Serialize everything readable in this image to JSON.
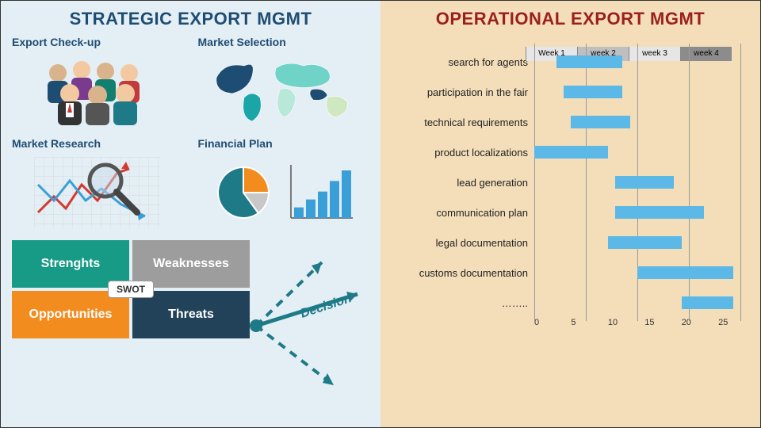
{
  "layout": {
    "left_bg": "#e4eef5",
    "right_bg": "#f3deb9",
    "left_title_color": "#1e4d73",
    "right_title_color": "#9c1f1f",
    "border_color": "#333333"
  },
  "left": {
    "title": "STRATEGIC EXPORT MGMT",
    "cards": {
      "checkup": {
        "title": "Export Check-up",
        "title_color": "#1e4d73"
      },
      "market_selection": {
        "title": "Market Selection",
        "title_color": "#1e4d73",
        "map_colors": [
          "#1e4d73",
          "#1aa6a6",
          "#6fd3c7",
          "#b7e8d8",
          "#cfe8c2"
        ]
      },
      "market_research": {
        "title": "Market Research",
        "title_color": "#1e4d73",
        "line1_color": "#d33a2f",
        "line2_color": "#3a9fd6"
      },
      "financial_plan": {
        "title": "Financial Plan",
        "title_color": "#1e4d73",
        "pie": {
          "slices": [
            {
              "color": "#f28c1f",
              "pct": 25
            },
            {
              "color": "#c8c8c8",
              "pct": 15
            },
            {
              "color": "#1d7a86",
              "pct": 60
            }
          ]
        },
        "bars": {
          "values": [
            20,
            35,
            50,
            70,
            90
          ],
          "color": "#3a9fd6"
        }
      }
    },
    "swot": {
      "label": "SWOT",
      "cells": [
        {
          "key": "strengths",
          "text": "Strenghts",
          "bg": "#179b86"
        },
        {
          "key": "weaknesses",
          "text": "Weaknesses",
          "bg": "#9d9d9d"
        },
        {
          "key": "opportunities",
          "text": "Opportunities",
          "bg": "#f28c1f"
        },
        {
          "key": "threats",
          "text": "Threats",
          "bg": "#22425a"
        }
      ]
    },
    "decision": {
      "label": "Decision",
      "color": "#1d7a86"
    }
  },
  "right": {
    "title": "OPERATIONAL EXPORT MGMT",
    "gantt": {
      "bar_color": "#5cb8e6",
      "grid_color": "#999999",
      "xmax": 28,
      "weeks": [
        {
          "label": "Week 1",
          "bg": "#e6e6e6"
        },
        {
          "label": "week 2",
          "bg": "#bfbfbf"
        },
        {
          "label": "week 3",
          "bg": "#e6e6e6"
        },
        {
          "label": "week 4",
          "bg": "#8c8c8c"
        }
      ],
      "xticks": [
        0,
        5,
        10,
        15,
        20,
        25
      ],
      "rows": [
        {
          "label": "search for agents",
          "start": 3,
          "end": 12
        },
        {
          "label": "participation in the fair",
          "start": 4,
          "end": 12
        },
        {
          "label": "technical requirements",
          "start": 5,
          "end": 13
        },
        {
          "label": "product localizations",
          "start": 0,
          "end": 10
        },
        {
          "label": "lead generation",
          "start": 11,
          "end": 19
        },
        {
          "label": "communication plan",
          "start": 11,
          "end": 23
        },
        {
          "label": "legal documentation",
          "start": 10,
          "end": 20
        },
        {
          "label": "customs documentation",
          "start": 14,
          "end": 27
        },
        {
          "label": "……..",
          "start": 20,
          "end": 27
        }
      ]
    }
  }
}
